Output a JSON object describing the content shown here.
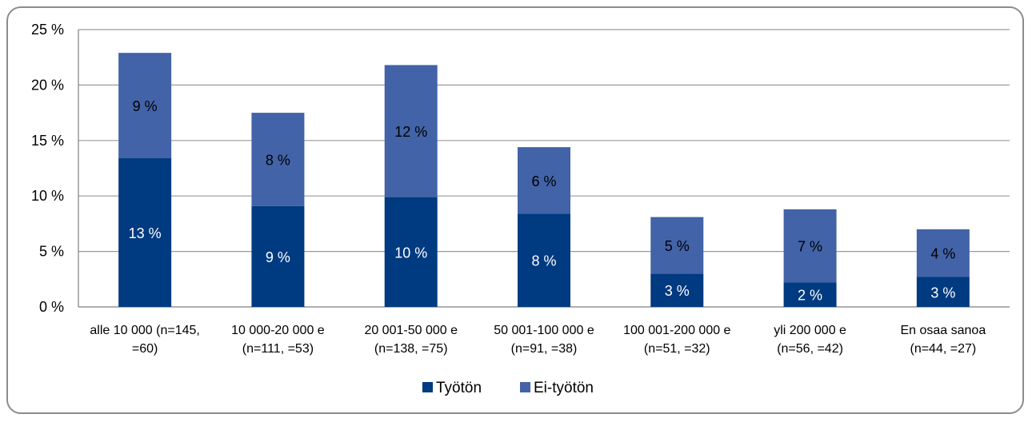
{
  "chart_data": {
    "type": "bar",
    "stacked": true,
    "title": "",
    "xlabel": "",
    "ylabel": "",
    "ylim": [
      0,
      25
    ],
    "yticks": [
      0,
      5,
      10,
      15,
      20,
      25
    ],
    "ytick_labels": [
      "0 %",
      "5 %",
      "10 %",
      "15 %",
      "20 %",
      "25 %"
    ],
    "grid": true,
    "legend_position": "bottom",
    "categories": [
      [
        "alle 10 000 (n=145,",
        "=60)"
      ],
      [
        "10 000-20 000 e",
        "(n=111, =53)"
      ],
      [
        "20 001-50 000 e",
        "(n=138, =75)"
      ],
      [
        "50 001-100 000 e",
        "(n=91, =38)"
      ],
      [
        "100 001-200 000 e",
        "(n=51, =32)"
      ],
      [
        "yli 200 000 e",
        "(n=56, =42)"
      ],
      [
        "En osaa sanoa",
        "(n=44, =27)"
      ]
    ],
    "series": [
      {
        "name": "Työtön",
        "color": "#003a80",
        "values": [
          13.4,
          9.1,
          9.9,
          8.4,
          3.0,
          2.2,
          2.7
        ],
        "labels": [
          "13 %",
          "9 %",
          "10 %",
          "8 %",
          "3 %",
          "2 %",
          "3 %"
        ]
      },
      {
        "name": "Ei-työtön",
        "color": "#4263a8",
        "values": [
          9.5,
          8.4,
          11.9,
          6.0,
          5.1,
          6.6,
          4.3
        ],
        "labels": [
          "9 %",
          "8 %",
          "12 %",
          "6 %",
          "5 %",
          "7 %",
          "4 %"
        ]
      }
    ]
  }
}
